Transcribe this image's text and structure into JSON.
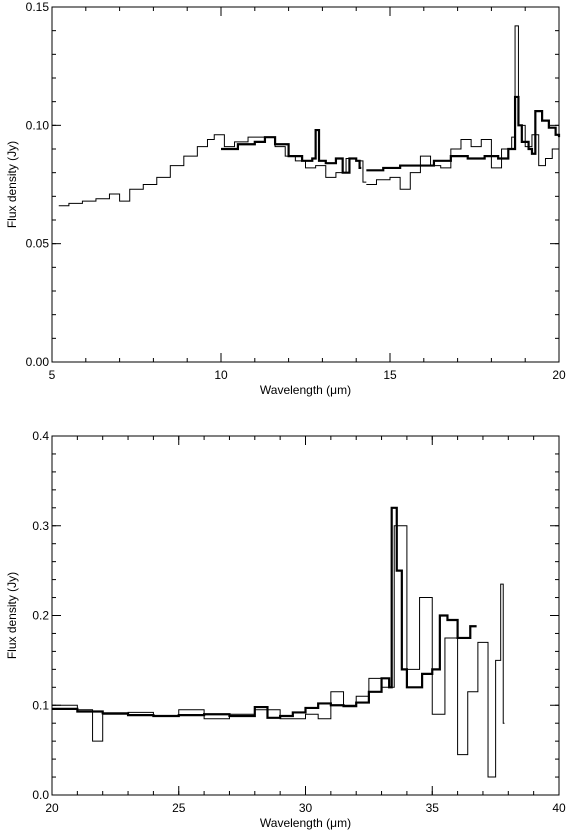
{
  "chart_data": [
    {
      "type": "line",
      "title": "",
      "xlabel": "Wavelength (μm)",
      "ylabel": "Flux density (Jy)",
      "xlim": [
        5,
        20
      ],
      "ylim": [
        0.0,
        0.15
      ],
      "xticks": [
        5,
        10,
        15,
        20
      ],
      "xtick_labels": [
        "5",
        "10",
        "15",
        "20"
      ],
      "yticks": [
        0.0,
        0.05,
        0.1,
        0.15
      ],
      "ytick_labels": [
        "0.00",
        "0.05",
        "0.10",
        "0.15"
      ],
      "step": true,
      "grid": false,
      "series": [
        {
          "style": "thin",
          "x": [
            5.2,
            5.5,
            5.9,
            6.3,
            6.7,
            7.0,
            7.3,
            7.7,
            8.1,
            8.5,
            8.9,
            9.3,
            9.6,
            9.8,
            10.1,
            10.4,
            10.8,
            11.2,
            11.6,
            11.9,
            12.2,
            12.5,
            12.8,
            13.1,
            13.4,
            13.7,
            14.0,
            14.2
          ],
          "y": [
            0.066,
            0.067,
            0.068,
            0.069,
            0.071,
            0.068,
            0.073,
            0.075,
            0.078,
            0.083,
            0.087,
            0.091,
            0.094,
            0.096,
            0.091,
            0.093,
            0.095,
            0.095,
            0.091,
            0.087,
            0.085,
            0.082,
            0.083,
            0.078,
            0.08,
            0.086,
            0.085,
            0.076
          ]
        },
        {
          "style": "thick",
          "x": [
            10.0,
            10.5,
            11.0,
            11.3,
            11.6,
            12.0,
            12.4,
            12.7,
            12.8,
            12.9,
            13.1,
            13.4,
            13.6,
            13.8,
            14.0,
            14.1
          ],
          "y": [
            0.09,
            0.092,
            0.093,
            0.095,
            0.092,
            0.087,
            0.085,
            0.086,
            0.098,
            0.085,
            0.084,
            0.086,
            0.08,
            0.086,
            0.085,
            0.082
          ]
        },
        {
          "style": "thin",
          "x": [
            14.3,
            14.6,
            15.0,
            15.3,
            15.6,
            15.9,
            16.2,
            16.5,
            16.8,
            17.1,
            17.4,
            17.7,
            18.0,
            18.3,
            18.6,
            18.7,
            18.8,
            19.0,
            19.2,
            19.4,
            19.6,
            19.8,
            20.0
          ],
          "y": [
            0.075,
            0.077,
            0.078,
            0.073,
            0.08,
            0.087,
            0.083,
            0.082,
            0.09,
            0.094,
            0.091,
            0.094,
            0.082,
            0.09,
            0.095,
            0.142,
            0.1,
            0.091,
            0.096,
            0.083,
            0.086,
            0.09,
            0.093
          ]
        },
        {
          "style": "thick",
          "x": [
            14.3,
            14.8,
            15.3,
            15.8,
            16.3,
            16.8,
            17.3,
            17.8,
            18.2,
            18.5,
            18.7,
            18.8,
            18.9,
            19.1,
            19.2,
            19.3,
            19.5,
            19.7,
            19.9,
            20.0
          ],
          "y": [
            0.081,
            0.082,
            0.083,
            0.083,
            0.085,
            0.087,
            0.086,
            0.087,
            0.086,
            0.09,
            0.112,
            0.1,
            0.093,
            0.09,
            0.088,
            0.106,
            0.102,
            0.099,
            0.096,
            0.095
          ]
        }
      ]
    },
    {
      "type": "line",
      "title": "",
      "xlabel": "Wavelength (μm)",
      "ylabel": "Flux density (Jy)",
      "xlim": [
        20,
        40
      ],
      "ylim": [
        0.0,
        0.4
      ],
      "xticks": [
        20,
        25,
        30,
        35,
        40
      ],
      "xtick_labels": [
        "20",
        "25",
        "30",
        "35",
        "40"
      ],
      "yticks": [
        0.0,
        0.1,
        0.2,
        0.3,
        0.4
      ],
      "ytick_labels": [
        "0.0",
        "0.1",
        "0.2",
        "0.3",
        "0.4"
      ],
      "step": true,
      "grid": false,
      "series": [
        {
          "style": "thick",
          "x": [
            20.0,
            21.0,
            22.0,
            23.0,
            24.0,
            25.0,
            26.0,
            27.0,
            28.0,
            28.5,
            29.0,
            29.5,
            30.0,
            30.5,
            31.0,
            31.5,
            32.0,
            32.5,
            33.0,
            33.3,
            33.4,
            33.6,
            33.8,
            34.0,
            34.3,
            34.6,
            35.0,
            35.3,
            35.6,
            36.0,
            36.5
          ],
          "y": [
            0.096,
            0.093,
            0.091,
            0.089,
            0.088,
            0.089,
            0.09,
            0.088,
            0.098,
            0.086,
            0.088,
            0.092,
            0.097,
            0.102,
            0.1,
            0.099,
            0.103,
            0.115,
            0.13,
            0.12,
            0.32,
            0.25,
            0.14,
            0.12,
            0.12,
            0.135,
            0.14,
            0.2,
            0.195,
            0.175,
            0.188
          ]
        },
        {
          "style": "thin",
          "x": [
            20.0,
            21.0,
            21.6,
            22.0,
            23.0,
            24.0,
            25.0,
            26.0,
            27.0,
            28.0,
            29.0,
            30.0,
            30.5,
            31.0,
            31.5,
            32.0,
            32.5,
            33.0,
            33.5,
            34.0,
            34.5,
            35.0,
            35.5,
            36.0,
            36.4,
            36.8,
            37.2,
            37.5,
            37.7,
            37.8
          ],
          "y": [
            0.1,
            0.095,
            0.06,
            0.09,
            0.092,
            0.088,
            0.095,
            0.085,
            0.09,
            0.095,
            0.085,
            0.09,
            0.085,
            0.115,
            0.1,
            0.11,
            0.13,
            0.12,
            0.3,
            0.14,
            0.22,
            0.09,
            0.175,
            0.045,
            0.115,
            0.17,
            0.02,
            0.15,
            0.235,
            0.08
          ]
        }
      ]
    }
  ]
}
